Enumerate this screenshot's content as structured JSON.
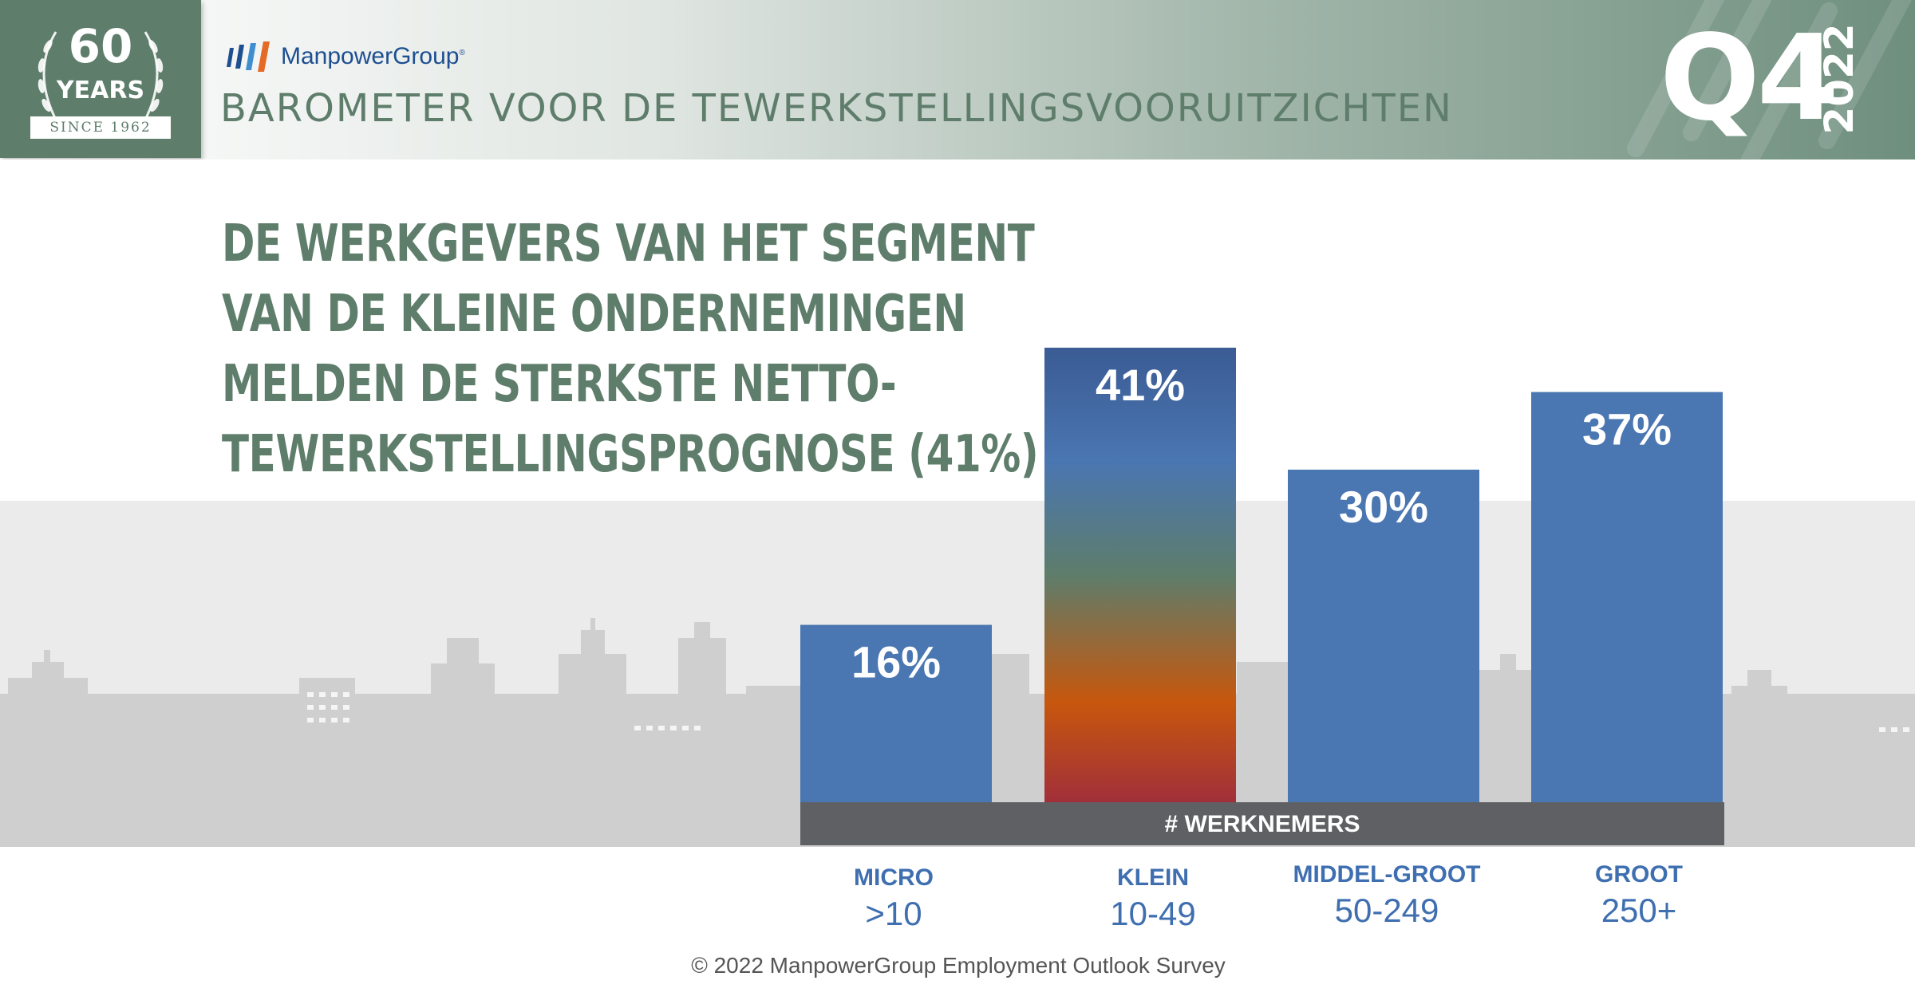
{
  "badge": {
    "number": "60",
    "label": "YEARS",
    "since": "SINCE 1962"
  },
  "brand": {
    "name": "ManpowerGroup",
    "mark": "®"
  },
  "header": {
    "title": "BAROMETER VOOR DE TEWERKSTELLINGSVOORUITZICHTEN",
    "quarter": "Q4",
    "year": "2022"
  },
  "headline": {
    "lines": [
      "DE WERKGEVERS VAN HET SEGMENT",
      "VAN DE KLEINE ONDERNEMINGEN",
      "MELDEN DE STERKSTE NETTO-",
      "TEWERKSTELLINGSPROGNOSE (41%)"
    ]
  },
  "chart_data": {
    "type": "bar",
    "categories": [
      "MICRO",
      "KLEIN",
      "MIDDEL-GROOT",
      "GROOT"
    ],
    "ranges": [
      ">10",
      "10-49",
      "50-249",
      "250+"
    ],
    "values": [
      16,
      41,
      30,
      37
    ],
    "value_labels": [
      "16%",
      "41%",
      "30%",
      "37%"
    ],
    "unit": "%",
    "axis_label": "# WERKNEMERS",
    "highlight": "KLEIN",
    "colors": {
      "bar": "#4a76b1",
      "highlight_gradient": [
        "#3b5b94",
        "#4a76b1",
        "#5e7d6b",
        "#c7570d",
        "#a12f3a"
      ],
      "axis_band": "#5f6064"
    }
  },
  "footer": {
    "copyright": "© 2022 ManpowerGroup Employment Outlook Survey"
  },
  "colors": {
    "accent_green": "#5e7d6b",
    "brand_blue": "#1d4f91",
    "category_blue": "#3f6fb0"
  }
}
